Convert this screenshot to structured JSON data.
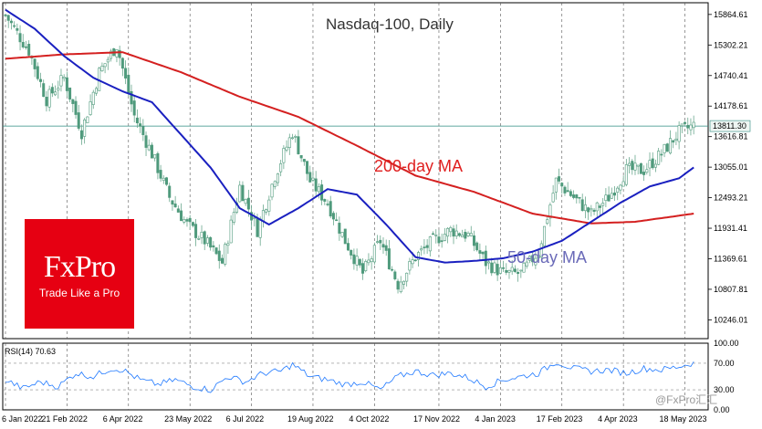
{
  "chart_data": [
    {
      "type": "candlestick",
      "title": "Nasdaq-100, Daily",
      "y_ticks": [
        "15864.61",
        "15302.21",
        "14740.41",
        "14178.61",
        "13616.81",
        "13055.01",
        "12493.21",
        "11931.41",
        "11369.61",
        "10807.81",
        "10246.01"
      ],
      "y_range": [
        9900,
        16080
      ],
      "x_ticks": [
        "6 Jan 2022",
        "21 Feb 2022",
        "6 Apr 2022",
        "23 May 2022",
        "6 Jul 2022",
        "19 Aug 2022",
        "4 Oct 2022",
        "17 Nov 2022",
        "4 Jan 2023",
        "17 Feb 2023",
        "4 Apr 2023",
        "18 May 2023"
      ],
      "current_price": "13811.30",
      "price_path": [
        [
          0,
          15850
        ],
        [
          8,
          15200
        ],
        [
          14,
          14300
        ],
        [
          20,
          14700
        ],
        [
          26,
          13700
        ],
        [
          32,
          14800
        ],
        [
          38,
          15300
        ],
        [
          44,
          14000
        ],
        [
          50,
          13300
        ],
        [
          56,
          12500
        ],
        [
          62,
          12000
        ],
        [
          68,
          11700
        ],
        [
          74,
          11300
        ],
        [
          80,
          12700
        ],
        [
          86,
          11900
        ],
        [
          92,
          12900
        ],
        [
          98,
          13700
        ],
        [
          104,
          12800
        ],
        [
          110,
          12400
        ],
        [
          116,
          11700
        ],
        [
          122,
          11100
        ],
        [
          128,
          11700
        ],
        [
          134,
          10900
        ],
        [
          140,
          11400
        ],
        [
          146,
          11700
        ],
        [
          152,
          11900
        ],
        [
          158,
          11800
        ],
        [
          164,
          11300
        ],
        [
          170,
          11100
        ],
        [
          176,
          11100
        ],
        [
          182,
          11500
        ],
        [
          188,
          12800
        ],
        [
          194,
          12500
        ],
        [
          200,
          12200
        ],
        [
          206,
          12500
        ],
        [
          212,
          13000
        ],
        [
          218,
          13000
        ],
        [
          224,
          13300
        ],
        [
          230,
          13700
        ],
        [
          235,
          13820
        ]
      ],
      "series": [
        {
          "name": "200-day MA",
          "color": "#d42020",
          "values": [
            [
              0,
              15050
            ],
            [
              20,
              15130
            ],
            [
              40,
              15170
            ],
            [
              60,
              14800
            ],
            [
              80,
              14350
            ],
            [
              100,
              13980
            ],
            [
              120,
              13450
            ],
            [
              140,
              12900
            ],
            [
              160,
              12600
            ],
            [
              180,
              12200
            ],
            [
              200,
              12020
            ],
            [
              215,
              12050
            ],
            [
              235,
              12200
            ]
          ]
        },
        {
          "name": "50-day MA",
          "color": "#1a20c0",
          "values": [
            [
              0,
              15950
            ],
            [
              10,
              15600
            ],
            [
              20,
              15100
            ],
            [
              30,
              14700
            ],
            [
              40,
              14450
            ],
            [
              50,
              14250
            ],
            [
              60,
              13650
            ],
            [
              70,
              13050
            ],
            [
              80,
              12300
            ],
            [
              90,
              12000
            ],
            [
              100,
              12300
            ],
            [
              110,
              12650
            ],
            [
              120,
              12550
            ],
            [
              130,
              12000
            ],
            [
              140,
              11400
            ],
            [
              150,
              11300
            ],
            [
              160,
              11330
            ],
            [
              170,
              11380
            ],
            [
              180,
              11500
            ],
            [
              190,
              11700
            ],
            [
              200,
              12050
            ],
            [
              210,
              12400
            ],
            [
              220,
              12700
            ],
            [
              230,
              12850
            ],
            [
              235,
              13050
            ]
          ]
        }
      ]
    },
    {
      "type": "line",
      "title": "RSI(14) 70.63",
      "y_ticks": [
        "100.00",
        "70.00",
        "30.00",
        "0.00"
      ],
      "y_range": [
        0,
        100
      ],
      "series": [
        {
          "name": "RSI(14)",
          "color": "#1e78ff",
          "values": [
            [
              0,
              45
            ],
            [
              6,
              32
            ],
            [
              12,
              42
            ],
            [
              18,
              35
            ],
            [
              24,
              55
            ],
            [
              30,
              50
            ],
            [
              36,
              62
            ],
            [
              40,
              60
            ],
            [
              46,
              45
            ],
            [
              52,
              38
            ],
            [
              58,
              45
            ],
            [
              64,
              35
            ],
            [
              70,
              30
            ],
            [
              76,
              50
            ],
            [
              82,
              42
            ],
            [
              88,
              55
            ],
            [
              94,
              58
            ],
            [
              98,
              68
            ],
            [
              104,
              50
            ],
            [
              110,
              45
            ],
            [
              116,
              38
            ],
            [
              122,
              42
            ],
            [
              128,
              30
            ],
            [
              134,
              50
            ],
            [
              140,
              58
            ],
            [
              146,
              52
            ],
            [
              152,
              55
            ],
            [
              158,
              48
            ],
            [
              164,
              35
            ],
            [
              170,
              45
            ],
            [
              176,
              50
            ],
            [
              182,
              55
            ],
            [
              188,
              72
            ],
            [
              194,
              62
            ],
            [
              200,
              58
            ],
            [
              206,
              60
            ],
            [
              212,
              55
            ],
            [
              218,
              62
            ],
            [
              224,
              60
            ],
            [
              230,
              65
            ],
            [
              235,
              70.63
            ]
          ]
        }
      ]
    }
  ],
  "labels": {
    "ma200": "200-day MA",
    "ma50": "50-day MA"
  },
  "logo": {
    "brand": "FxPro",
    "slogan": "Trade Like a Pro"
  },
  "watermark": "@FxPro汇汇"
}
